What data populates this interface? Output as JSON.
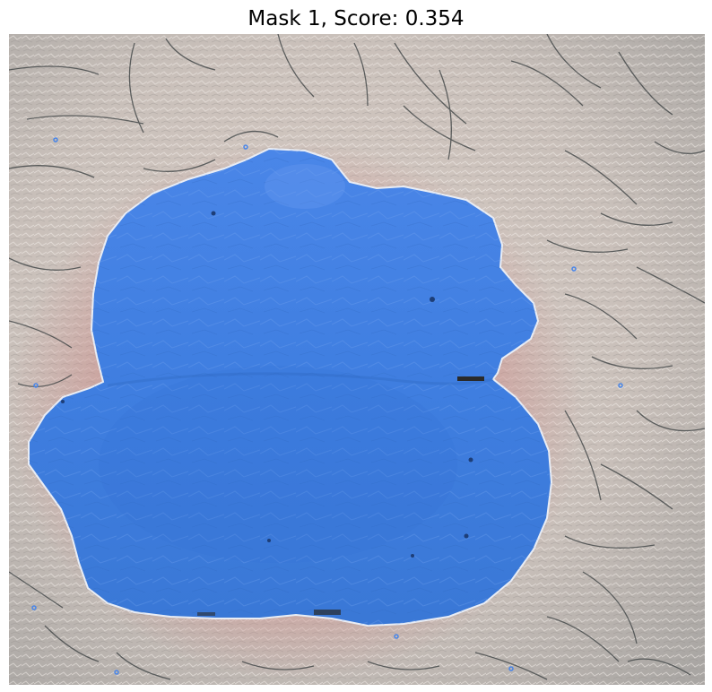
{
  "figure": {
    "title": "Mask 1, Score: 0.354"
  },
  "colors": {
    "skin": "#cdc3bc",
    "skin_dark": "#9f9995",
    "hair": "#3f4445",
    "mask_fill": "#3f7ee0",
    "mask_edge": "#e9edf5",
    "inflamed": "#c98f8c"
  },
  "image": {
    "subject": "skin-lesion-photo",
    "mask": "segmentation-mask"
  }
}
